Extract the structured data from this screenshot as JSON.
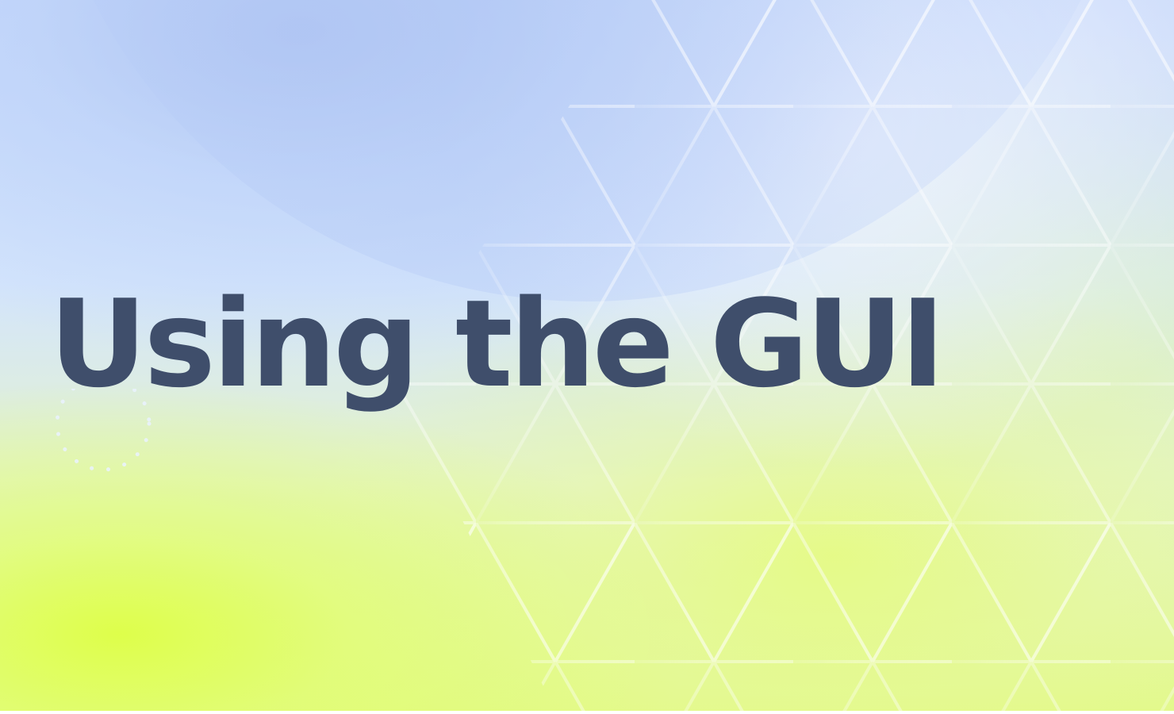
{
  "banner": {
    "title": "Using the GUI",
    "colors": {
      "title": "#3f4e6b",
      "sky_blue": "#c9dbfb",
      "lime": "#e2f98a",
      "pattern_line": "#ffffff"
    },
    "decor": {
      "pattern": "triangle-grid",
      "ring": "dotted-circle"
    }
  }
}
